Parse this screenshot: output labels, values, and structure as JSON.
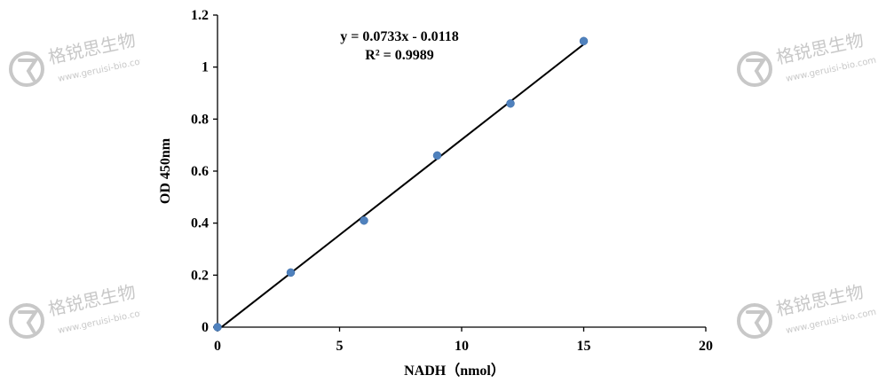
{
  "watermark": {
    "brand_cn": "格锐思生物",
    "url": "www.geruisi-bio.com",
    "color": "#c8c8c8"
  },
  "chart_data": {
    "type": "scatter",
    "title": "",
    "xlabel": "NADH（nmol）",
    "ylabel": "OD 450nm",
    "xlim": [
      0,
      20
    ],
    "ylim": [
      0,
      1.2
    ],
    "xticks": [
      0,
      5,
      10,
      15,
      20
    ],
    "yticks": [
      0,
      0.2,
      0.4,
      0.6,
      0.8,
      1,
      1.2
    ],
    "xtick_labels": [
      "0",
      "5",
      "10",
      "15",
      "20"
    ],
    "ytick_labels": [
      "0",
      "0.2",
      "0.4",
      "0.6",
      "0.8",
      "1",
      "1.2"
    ],
    "grid": false,
    "legend": "none",
    "series": [
      {
        "x": [
          0,
          3,
          6,
          9,
          12,
          15
        ],
        "y": [
          0,
          0.21,
          0.41,
          0.66,
          0.86,
          1.1
        ],
        "color": "#4f81bd"
      }
    ],
    "trendline": {
      "slope": 0.0733,
      "intercept": -0.0118,
      "x_range": [
        0,
        15
      ],
      "color": "#000000"
    },
    "annotations": {
      "equation": "y = 0.0733x - 0.0118",
      "r_squared": "R² = 0.9989"
    }
  }
}
